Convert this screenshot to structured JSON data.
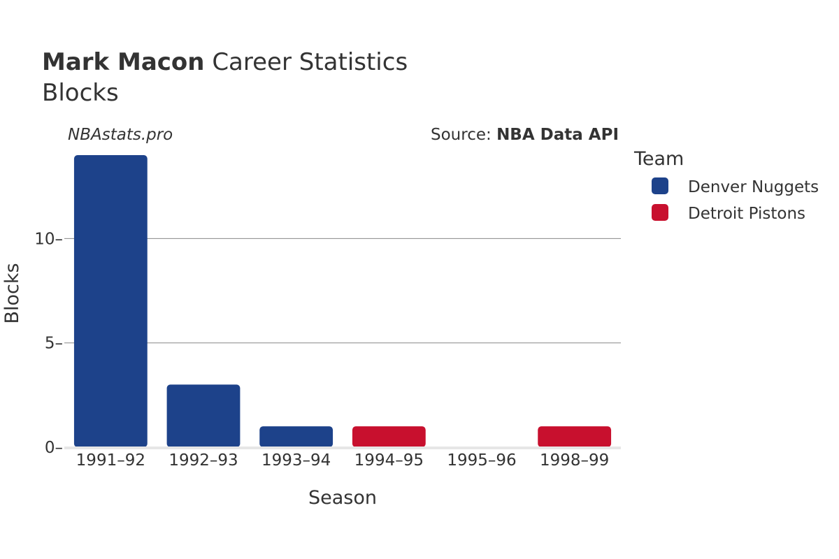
{
  "title": {
    "bold": "Mark Macon",
    "rest": "Career Statistics"
  },
  "subtitle": "Blocks",
  "credit": "NBAstats.pro",
  "source": {
    "prefix": "Source: ",
    "bold": "NBA Data API"
  },
  "legend": {
    "title": "Team",
    "items": [
      {
        "label": "Denver Nuggets",
        "color": "#1d428a"
      },
      {
        "label": "Detroit Pistons",
        "color": "#c8102e"
      }
    ]
  },
  "chart_data": {
    "type": "bar",
    "xlabel": "Season",
    "ylabel": "Blocks",
    "categories": [
      "1991–92",
      "1992–93",
      "1993–94",
      "1994–95",
      "1995–96",
      "1998–99"
    ],
    "values": [
      14,
      3,
      1,
      1,
      0,
      1
    ],
    "teams": [
      "Denver Nuggets",
      "Denver Nuggets",
      "Denver Nuggets",
      "Detroit Pistons",
      "Detroit Pistons",
      "Detroit Pistons"
    ],
    "ylim": [
      0,
      14
    ],
    "yticks": [
      0,
      5,
      10
    ],
    "grid": true,
    "legend_position": "right"
  }
}
